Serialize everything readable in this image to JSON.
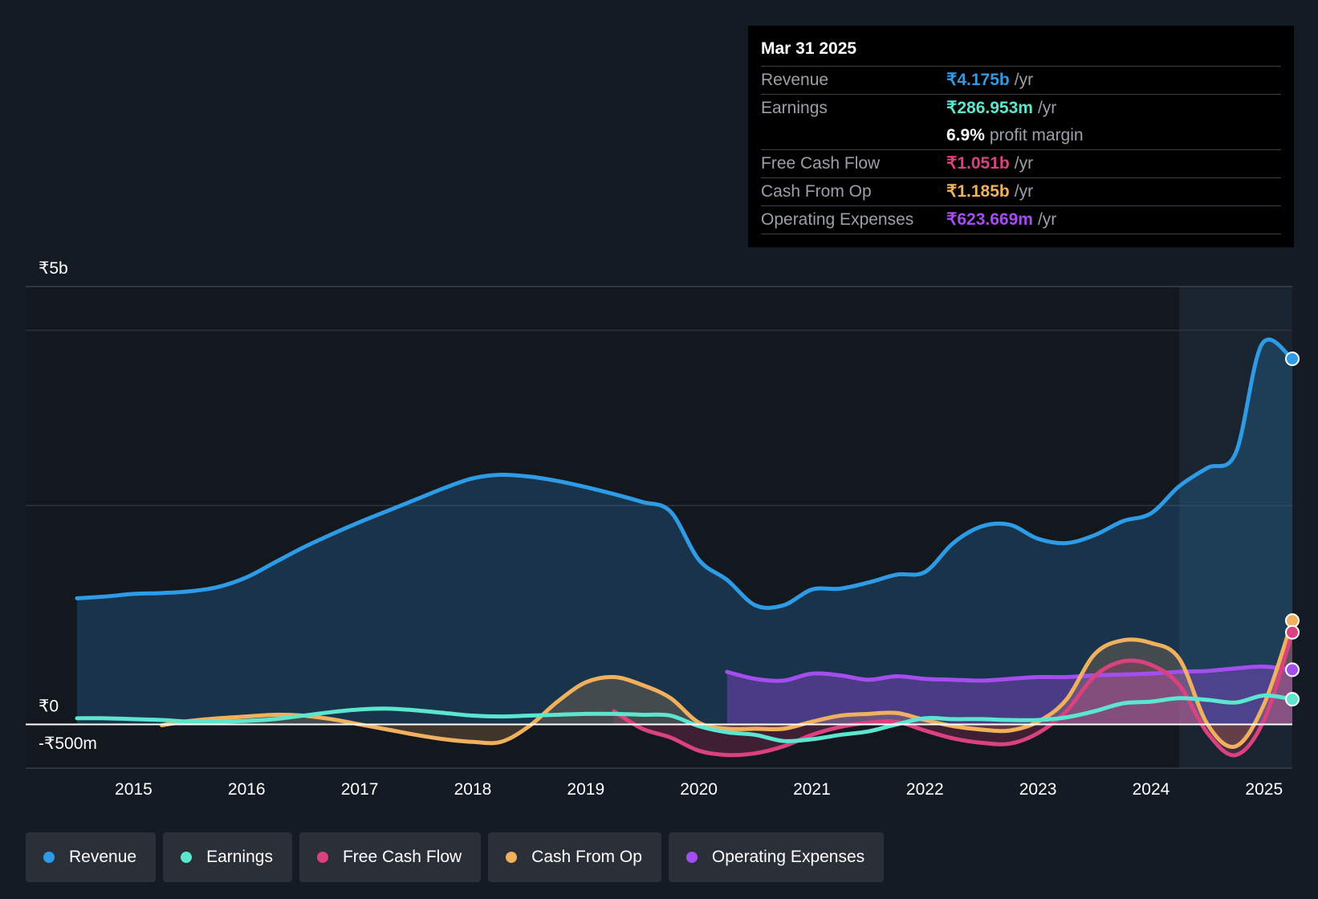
{
  "tooltip": {
    "date": "Mar 31 2025",
    "rows": [
      {
        "label": "Revenue",
        "value": "₹4.175b",
        "unit": "/yr",
        "color": "#2d9be6"
      },
      {
        "label": "Earnings",
        "value": "₹286.953m",
        "unit": "/yr",
        "color": "#5ce6cf"
      },
      {
        "label": "",
        "value": "6.9%",
        "unit": "profit margin",
        "color": "#ffffff"
      },
      {
        "label": "Free Cash Flow",
        "value": "₹1.051b",
        "unit": "/yr",
        "color": "#d9417f"
      },
      {
        "label": "Cash From Op",
        "value": "₹1.185b",
        "unit": "/yr",
        "color": "#f0b05e"
      },
      {
        "label": "Operating Expenses",
        "value": "₹623.669m",
        "unit": "/yr",
        "color": "#a64df0"
      }
    ]
  },
  "legend": [
    {
      "label": "Revenue",
      "color": "#2d9be6"
    },
    {
      "label": "Earnings",
      "color": "#5ce6cf"
    },
    {
      "label": "Free Cash Flow",
      "color": "#d9417f"
    },
    {
      "label": "Cash From Op",
      "color": "#f0b05e"
    },
    {
      "label": "Operating Expenses",
      "color": "#a64df0"
    }
  ],
  "chart_data": {
    "type": "line",
    "title": "",
    "xlabel": "",
    "ylabel": "",
    "y_unit": "₹ billions",
    "ylim": [
      -0.5,
      5.0
    ],
    "xlim": [
      2014.5,
      2025.25
    ],
    "y_tick_labels": [
      {
        "value": 5.0,
        "label": "₹5b"
      },
      {
        "value": 0.0,
        "label": "₹0"
      },
      {
        "value": -0.5,
        "label": "-₹500m"
      }
    ],
    "gridlines": [
      4.5,
      2.5
    ],
    "x_ticks": [
      2015,
      2016,
      2017,
      2018,
      2019,
      2020,
      2021,
      2022,
      2023,
      2024,
      2025
    ],
    "x_tick_labels": [
      "2015",
      "2016",
      "2017",
      "2018",
      "2019",
      "2020",
      "2021",
      "2022",
      "2023",
      "2024",
      "2025"
    ],
    "highlight_from": 2024.25,
    "series": [
      {
        "name": "Revenue",
        "color": "#2d9be6",
        "fill": true,
        "points": [
          [
            2014.5,
            1.44
          ],
          [
            2014.75,
            1.46
          ],
          [
            2015.0,
            1.49
          ],
          [
            2015.25,
            1.5
          ],
          [
            2015.5,
            1.52
          ],
          [
            2015.75,
            1.57
          ],
          [
            2016.0,
            1.68
          ],
          [
            2016.25,
            1.85
          ],
          [
            2016.5,
            2.02
          ],
          [
            2016.75,
            2.17
          ],
          [
            2017.0,
            2.31
          ],
          [
            2017.25,
            2.44
          ],
          [
            2017.5,
            2.57
          ],
          [
            2017.75,
            2.7
          ],
          [
            2018.0,
            2.81
          ],
          [
            2018.25,
            2.85
          ],
          [
            2018.5,
            2.83
          ],
          [
            2018.75,
            2.78
          ],
          [
            2019.0,
            2.71
          ],
          [
            2019.25,
            2.63
          ],
          [
            2019.5,
            2.54
          ],
          [
            2019.75,
            2.43
          ],
          [
            2020.0,
            1.88
          ],
          [
            2020.25,
            1.65
          ],
          [
            2020.5,
            1.36
          ],
          [
            2020.75,
            1.36
          ],
          [
            2021.0,
            1.54
          ],
          [
            2021.25,
            1.55
          ],
          [
            2021.5,
            1.62
          ],
          [
            2021.75,
            1.71
          ],
          [
            2022.0,
            1.74
          ],
          [
            2022.25,
            2.07
          ],
          [
            2022.5,
            2.26
          ],
          [
            2022.75,
            2.28
          ],
          [
            2023.0,
            2.12
          ],
          [
            2023.25,
            2.07
          ],
          [
            2023.5,
            2.16
          ],
          [
            2023.75,
            2.32
          ],
          [
            2024.0,
            2.41
          ],
          [
            2024.25,
            2.72
          ],
          [
            2024.5,
            2.93
          ],
          [
            2024.75,
            3.1
          ],
          [
            2024.98,
            4.34
          ],
          [
            2025.25,
            4.175
          ]
        ]
      },
      {
        "name": "Earnings",
        "color": "#5ce6cf",
        "fill": false,
        "points": [
          [
            2014.5,
            0.07
          ],
          [
            2014.75,
            0.07
          ],
          [
            2015.0,
            0.06
          ],
          [
            2015.25,
            0.05
          ],
          [
            2015.5,
            0.03
          ],
          [
            2015.75,
            0.03
          ],
          [
            2016.0,
            0.04
          ],
          [
            2016.25,
            0.06
          ],
          [
            2016.5,
            0.1
          ],
          [
            2016.75,
            0.14
          ],
          [
            2017.0,
            0.17
          ],
          [
            2017.25,
            0.18
          ],
          [
            2017.5,
            0.16
          ],
          [
            2017.75,
            0.13
          ],
          [
            2018.0,
            0.1
          ],
          [
            2018.25,
            0.09
          ],
          [
            2018.5,
            0.1
          ],
          [
            2018.75,
            0.11
          ],
          [
            2019.0,
            0.12
          ],
          [
            2019.25,
            0.12
          ],
          [
            2019.5,
            0.11
          ],
          [
            2019.75,
            0.1
          ],
          [
            2020.0,
            -0.02
          ],
          [
            2020.25,
            -0.09
          ],
          [
            2020.5,
            -0.12
          ],
          [
            2020.75,
            -0.19
          ],
          [
            2021.0,
            -0.17
          ],
          [
            2021.25,
            -0.12
          ],
          [
            2021.5,
            -0.08
          ],
          [
            2021.75,
            0.0
          ],
          [
            2022.0,
            0.07
          ],
          [
            2022.25,
            0.06
          ],
          [
            2022.5,
            0.06
          ],
          [
            2022.75,
            0.05
          ],
          [
            2023.0,
            0.05
          ],
          [
            2023.25,
            0.08
          ],
          [
            2023.5,
            0.15
          ],
          [
            2023.75,
            0.24
          ],
          [
            2024.0,
            0.26
          ],
          [
            2024.25,
            0.3
          ],
          [
            2024.5,
            0.28
          ],
          [
            2024.75,
            0.25
          ],
          [
            2025.0,
            0.33
          ],
          [
            2025.25,
            0.287
          ]
        ]
      },
      {
        "name": "Free Cash Flow",
        "color": "#d9417f",
        "fill": true,
        "points": [
          [
            2019.25,
            0.15
          ],
          [
            2019.5,
            -0.05
          ],
          [
            2019.75,
            -0.15
          ],
          [
            2020.0,
            -0.3
          ],
          [
            2020.25,
            -0.35
          ],
          [
            2020.5,
            -0.33
          ],
          [
            2020.75,
            -0.25
          ],
          [
            2021.0,
            -0.12
          ],
          [
            2021.25,
            -0.03
          ],
          [
            2021.5,
            0.02
          ],
          [
            2021.75,
            0.03
          ],
          [
            2022.0,
            -0.07
          ],
          [
            2022.25,
            -0.16
          ],
          [
            2022.5,
            -0.21
          ],
          [
            2022.75,
            -0.22
          ],
          [
            2023.0,
            -0.1
          ],
          [
            2023.25,
            0.15
          ],
          [
            2023.5,
            0.55
          ],
          [
            2023.75,
            0.72
          ],
          [
            2024.0,
            0.68
          ],
          [
            2024.25,
            0.45
          ],
          [
            2024.5,
            -0.1
          ],
          [
            2024.75,
            -0.35
          ],
          [
            2025.0,
            0.05
          ],
          [
            2025.25,
            1.051
          ]
        ]
      },
      {
        "name": "Cash From Op",
        "color": "#f0b05e",
        "fill": true,
        "points": [
          [
            2015.25,
            -0.01
          ],
          [
            2015.5,
            0.04
          ],
          [
            2015.75,
            0.07
          ],
          [
            2016.0,
            0.09
          ],
          [
            2016.25,
            0.11
          ],
          [
            2016.5,
            0.1
          ],
          [
            2016.75,
            0.06
          ],
          [
            2017.0,
            0.0
          ],
          [
            2017.25,
            -0.06
          ],
          [
            2017.5,
            -0.12
          ],
          [
            2017.75,
            -0.17
          ],
          [
            2018.0,
            -0.2
          ],
          [
            2018.25,
            -0.2
          ],
          [
            2018.5,
            -0.02
          ],
          [
            2018.75,
            0.26
          ],
          [
            2019.0,
            0.48
          ],
          [
            2019.25,
            0.54
          ],
          [
            2019.5,
            0.45
          ],
          [
            2019.75,
            0.3
          ],
          [
            2020.0,
            0.02
          ],
          [
            2020.25,
            -0.05
          ],
          [
            2020.5,
            -0.05
          ],
          [
            2020.75,
            -0.05
          ],
          [
            2021.0,
            0.03
          ],
          [
            2021.25,
            0.1
          ],
          [
            2021.5,
            0.12
          ],
          [
            2021.75,
            0.13
          ],
          [
            2022.0,
            0.05
          ],
          [
            2022.25,
            -0.02
          ],
          [
            2022.5,
            -0.06
          ],
          [
            2022.75,
            -0.07
          ],
          [
            2023.0,
            0.03
          ],
          [
            2023.25,
            0.28
          ],
          [
            2023.5,
            0.8
          ],
          [
            2023.75,
            0.96
          ],
          [
            2024.0,
            0.93
          ],
          [
            2024.25,
            0.75
          ],
          [
            2024.5,
            0.0
          ],
          [
            2024.75,
            -0.25
          ],
          [
            2025.0,
            0.23
          ],
          [
            2025.25,
            1.185
          ]
        ]
      },
      {
        "name": "Operating Expenses",
        "color": "#a64df0",
        "fill": true,
        "points": [
          [
            2020.25,
            0.6
          ],
          [
            2020.5,
            0.52
          ],
          [
            2020.75,
            0.5
          ],
          [
            2021.0,
            0.58
          ],
          [
            2021.25,
            0.56
          ],
          [
            2021.5,
            0.51
          ],
          [
            2021.75,
            0.55
          ],
          [
            2022.0,
            0.52
          ],
          [
            2022.25,
            0.51
          ],
          [
            2022.5,
            0.5
          ],
          [
            2022.75,
            0.52
          ],
          [
            2023.0,
            0.54
          ],
          [
            2023.25,
            0.54
          ],
          [
            2023.5,
            0.56
          ],
          [
            2023.75,
            0.57
          ],
          [
            2024.0,
            0.58
          ],
          [
            2024.25,
            0.6
          ],
          [
            2024.5,
            0.61
          ],
          [
            2024.75,
            0.64
          ],
          [
            2025.0,
            0.66
          ],
          [
            2025.25,
            0.624
          ]
        ]
      }
    ]
  }
}
